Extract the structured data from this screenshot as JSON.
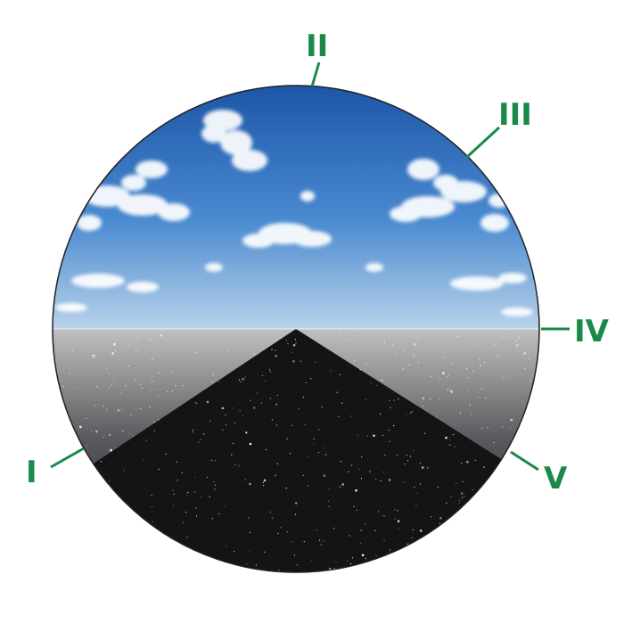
{
  "colors": {
    "label": "#1a8a4a",
    "leader": "#1a8a4a",
    "sky_top": "#1c56a8",
    "sky_mid": "#4a8ad0",
    "sky_horizon": "#b8d2ea",
    "ground_light": "#c0c0c0",
    "ground_dark": "#1e1e22",
    "night": "#141416",
    "rim": "#222222"
  },
  "markers": [
    {
      "id": "I",
      "text": "I"
    },
    {
      "id": "II",
      "text": "II"
    },
    {
      "id": "III",
      "text": "III"
    },
    {
      "id": "IV",
      "text": "IV"
    },
    {
      "id": "V",
      "text": "V"
    }
  ]
}
